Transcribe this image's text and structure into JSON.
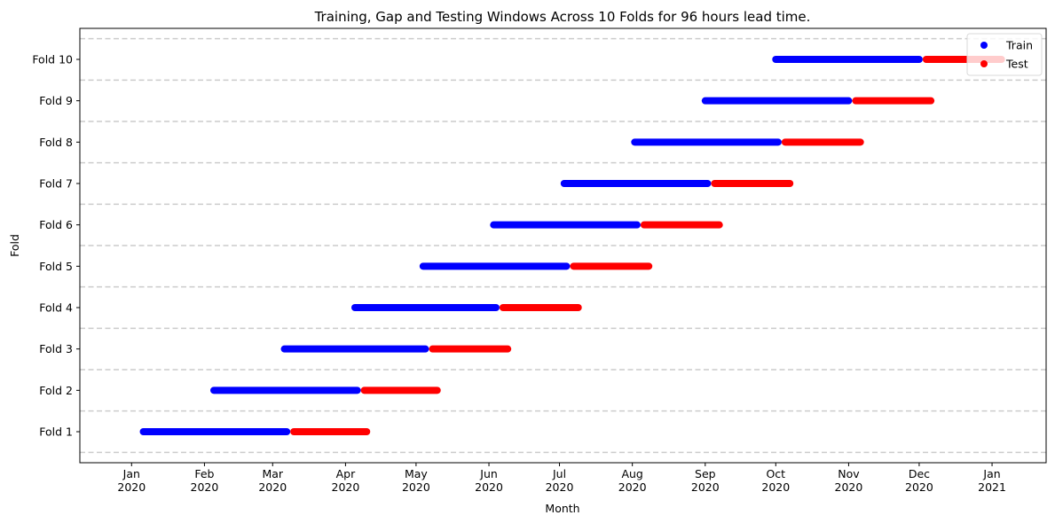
{
  "chart_data": {
    "type": "scatter",
    "title": "Training, Gap and Testing Windows Across 10 Folds for 96 hours lead time.",
    "xlabel": "Month",
    "ylabel": "Fold",
    "x_range": [
      "2019-12-10",
      "2021-01-24"
    ],
    "x_ticks": [
      {
        "date": "2020-01-01",
        "line1": "Jan",
        "line2": "2020"
      },
      {
        "date": "2020-02-01",
        "line1": "Feb",
        "line2": "2020"
      },
      {
        "date": "2020-03-01",
        "line1": "Mar",
        "line2": "2020"
      },
      {
        "date": "2020-04-01",
        "line1": "Apr",
        "line2": "2020"
      },
      {
        "date": "2020-05-01",
        "line1": "May",
        "line2": "2020"
      },
      {
        "date": "2020-06-01",
        "line1": "Jun",
        "line2": "2020"
      },
      {
        "date": "2020-07-01",
        "line1": "Jul",
        "line2": "2020"
      },
      {
        "date": "2020-08-01",
        "line1": "Aug",
        "line2": "2020"
      },
      {
        "date": "2020-09-01",
        "line1": "Sep",
        "line2": "2020"
      },
      {
        "date": "2020-10-01",
        "line1": "Oct",
        "line2": "2020"
      },
      {
        "date": "2020-11-01",
        "line1": "Nov",
        "line2": "2020"
      },
      {
        "date": "2020-12-01",
        "line1": "Dec",
        "line2": "2020"
      },
      {
        "date": "2021-01-01",
        "line1": "Jan",
        "line2": "2021"
      }
    ],
    "y_categories": [
      "Fold 1",
      "Fold 2",
      "Fold 3",
      "Fold 4",
      "Fold 5",
      "Fold 6",
      "Fold 7",
      "Fold 8",
      "Fold 9",
      "Fold 10"
    ],
    "grid": "horizontal dashed lines between folds",
    "legend_position": "top-right",
    "series": [
      {
        "name": "Train",
        "color": "#0000ff",
        "windows": [
          {
            "fold": "Fold 1",
            "start": "2020-01-06",
            "end": "2020-03-07"
          },
          {
            "fold": "Fold 2",
            "start": "2020-02-05",
            "end": "2020-04-06"
          },
          {
            "fold": "Fold 3",
            "start": "2020-03-06",
            "end": "2020-05-05"
          },
          {
            "fold": "Fold 4",
            "start": "2020-04-05",
            "end": "2020-06-04"
          },
          {
            "fold": "Fold 5",
            "start": "2020-05-04",
            "end": "2020-07-04"
          },
          {
            "fold": "Fold 6",
            "start": "2020-06-03",
            "end": "2020-08-03"
          },
          {
            "fold": "Fold 7",
            "start": "2020-07-03",
            "end": "2020-09-02"
          },
          {
            "fold": "Fold 8",
            "start": "2020-08-02",
            "end": "2020-10-02"
          },
          {
            "fold": "Fold 9",
            "start": "2020-09-01",
            "end": "2020-11-01"
          },
          {
            "fold": "Fold 10",
            "start": "2020-10-01",
            "end": "2020-12-01"
          }
        ]
      },
      {
        "name": "Test",
        "color": "#ff0000",
        "windows": [
          {
            "fold": "Fold 1",
            "start": "2020-03-10",
            "end": "2020-04-10"
          },
          {
            "fold": "Fold 2",
            "start": "2020-04-09",
            "end": "2020-05-10"
          },
          {
            "fold": "Fold 3",
            "start": "2020-05-08",
            "end": "2020-06-09"
          },
          {
            "fold": "Fold 4",
            "start": "2020-06-07",
            "end": "2020-07-09"
          },
          {
            "fold": "Fold 5",
            "start": "2020-07-07",
            "end": "2020-08-08"
          },
          {
            "fold": "Fold 6",
            "start": "2020-08-06",
            "end": "2020-09-07"
          },
          {
            "fold": "Fold 7",
            "start": "2020-09-05",
            "end": "2020-10-07"
          },
          {
            "fold": "Fold 8",
            "start": "2020-10-05",
            "end": "2020-11-06"
          },
          {
            "fold": "Fold 9",
            "start": "2020-11-04",
            "end": "2020-12-06"
          },
          {
            "fold": "Fold 10",
            "start": "2020-12-04",
            "end": "2021-01-05"
          }
        ]
      }
    ]
  }
}
